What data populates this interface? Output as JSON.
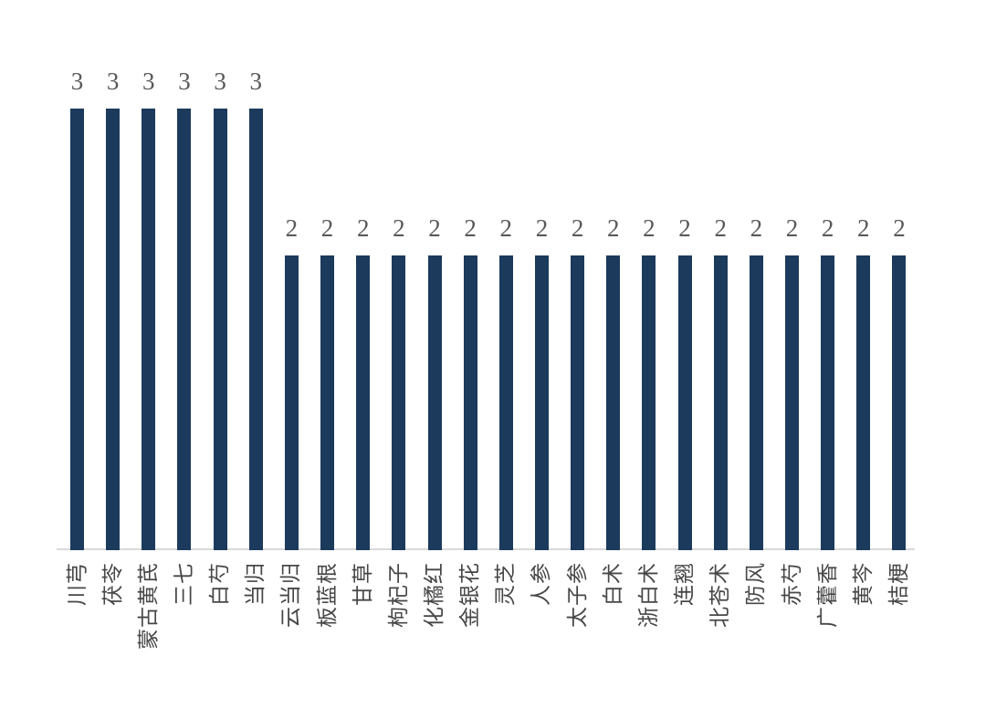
{
  "chart_data": {
    "type": "bar",
    "categories": [
      "川芎",
      "茯苓",
      "蒙古黄芪",
      "三七",
      "白芍",
      "当归",
      "云当归",
      "板蓝根",
      "甘草",
      "枸杞子",
      "化橘红",
      "金银花",
      "灵芝",
      "人参",
      "太子参",
      "白术",
      "浙白术",
      "连翘",
      "北苍术",
      "防风",
      "赤芍",
      "广藿香",
      "黄芩",
      "桔梗"
    ],
    "values": [
      3,
      3,
      3,
      3,
      3,
      3,
      2,
      2,
      2,
      2,
      2,
      2,
      2,
      2,
      2,
      2,
      2,
      2,
      2,
      2,
      2,
      2,
      2,
      2
    ],
    "title": "",
    "xlabel": "",
    "ylabel": "",
    "ylim": [
      0,
      3.6
    ],
    "data_labels": true,
    "grid": false,
    "legend_position": "none",
    "x_label_rotation_deg": -90
  },
  "colors": {
    "bar": "#1b3a5c",
    "value_label": "#595959",
    "category_label": "#474747",
    "axis_line": "#d9d9d9",
    "background": "#ffffff"
  }
}
